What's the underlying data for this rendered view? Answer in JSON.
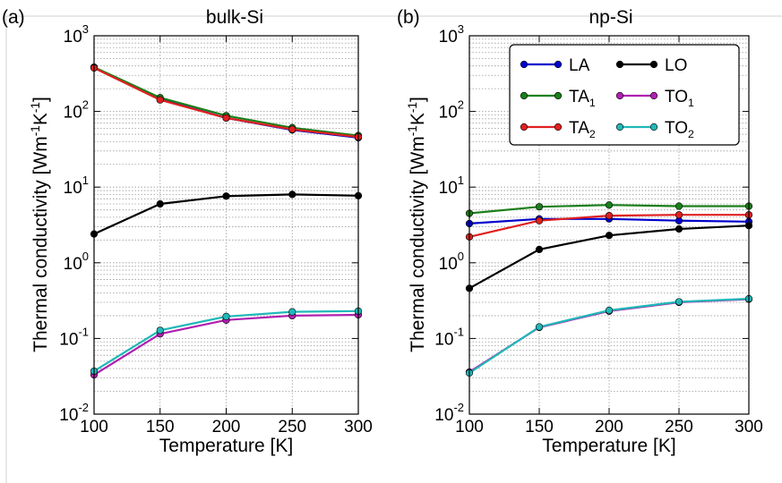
{
  "chart_data": [
    {
      "type": "line",
      "panel_label": "(a)",
      "title": "bulk-Si",
      "xlabel": "Temperature [K]",
      "ylabel": "Thermal conductivity [Wm⁻¹K⁻¹]",
      "xscale": "linear",
      "yscale": "log",
      "xlim": [
        100,
        300
      ],
      "ylim": [
        0.01,
        1000
      ],
      "xticks": [
        "100",
        "150",
        "200",
        "250",
        "300"
      ],
      "yticks": [
        {
          "base": "10",
          "exp": "-2"
        },
        {
          "base": "10",
          "exp": "-1"
        },
        {
          "base": "10",
          "exp": "0"
        },
        {
          "base": "10",
          "exp": "1"
        },
        {
          "base": "10",
          "exp": "2"
        },
        {
          "base": "10",
          "exp": "3"
        }
      ],
      "grid": true,
      "x": [
        100,
        150,
        200,
        250,
        300
      ],
      "series": [
        {
          "name": "LA",
          "color": "#0000cc",
          "values": [
            380,
            145,
            82,
            57,
            45
          ]
        },
        {
          "name": "TA₁",
          "color": "#1a7f1a",
          "values": [
            385,
            152,
            88,
            61,
            48
          ]
        },
        {
          "name": "TA₂",
          "color": "#e02020",
          "values": [
            375,
            142,
            82,
            58,
            46
          ]
        },
        {
          "name": "LO",
          "color": "#000000",
          "values": [
            2.4,
            6.0,
            7.6,
            8.0,
            7.7
          ]
        },
        {
          "name": "TO₁",
          "color": "#b020b0",
          "values": [
            0.033,
            0.115,
            0.175,
            0.2,
            0.205
          ]
        },
        {
          "name": "TO₂",
          "color": "#20b8b8",
          "values": [
            0.037,
            0.128,
            0.195,
            0.225,
            0.23
          ]
        }
      ]
    },
    {
      "type": "line",
      "panel_label": "(b)",
      "title": "np-Si",
      "xlabel": "Temperature [K]",
      "ylabel": "Thermal conductivity [Wm⁻¹K⁻¹]",
      "xscale": "linear",
      "yscale": "log",
      "xlim": [
        100,
        300
      ],
      "ylim": [
        0.01,
        1000
      ],
      "xticks": [
        "100",
        "150",
        "200",
        "250",
        "300"
      ],
      "yticks": [
        {
          "base": "10",
          "exp": "-2"
        },
        {
          "base": "10",
          "exp": "-1"
        },
        {
          "base": "10",
          "exp": "0"
        },
        {
          "base": "10",
          "exp": "1"
        },
        {
          "base": "10",
          "exp": "2"
        },
        {
          "base": "10",
          "exp": "3"
        }
      ],
      "grid": true,
      "legend_position": "top-right",
      "x": [
        100,
        150,
        200,
        250,
        300
      ],
      "series": [
        {
          "name": "LA",
          "color": "#0000cc",
          "values": [
            3.3,
            3.8,
            3.8,
            3.6,
            3.5
          ]
        },
        {
          "name": "TA₁",
          "color": "#1a7f1a",
          "values": [
            4.5,
            5.5,
            5.8,
            5.6,
            5.6
          ]
        },
        {
          "name": "TA₂",
          "color": "#e02020",
          "values": [
            2.2,
            3.6,
            4.2,
            4.3,
            4.3
          ]
        },
        {
          "name": "LO",
          "color": "#000000",
          "values": [
            0.46,
            1.5,
            2.3,
            2.8,
            3.1
          ]
        },
        {
          "name": "TO₁",
          "color": "#b020b0",
          "values": [
            0.036,
            0.14,
            0.23,
            0.3,
            0.33
          ]
        },
        {
          "name": "TO₂",
          "color": "#20b8b8",
          "values": [
            0.035,
            0.142,
            0.235,
            0.305,
            0.335
          ]
        }
      ]
    }
  ]
}
